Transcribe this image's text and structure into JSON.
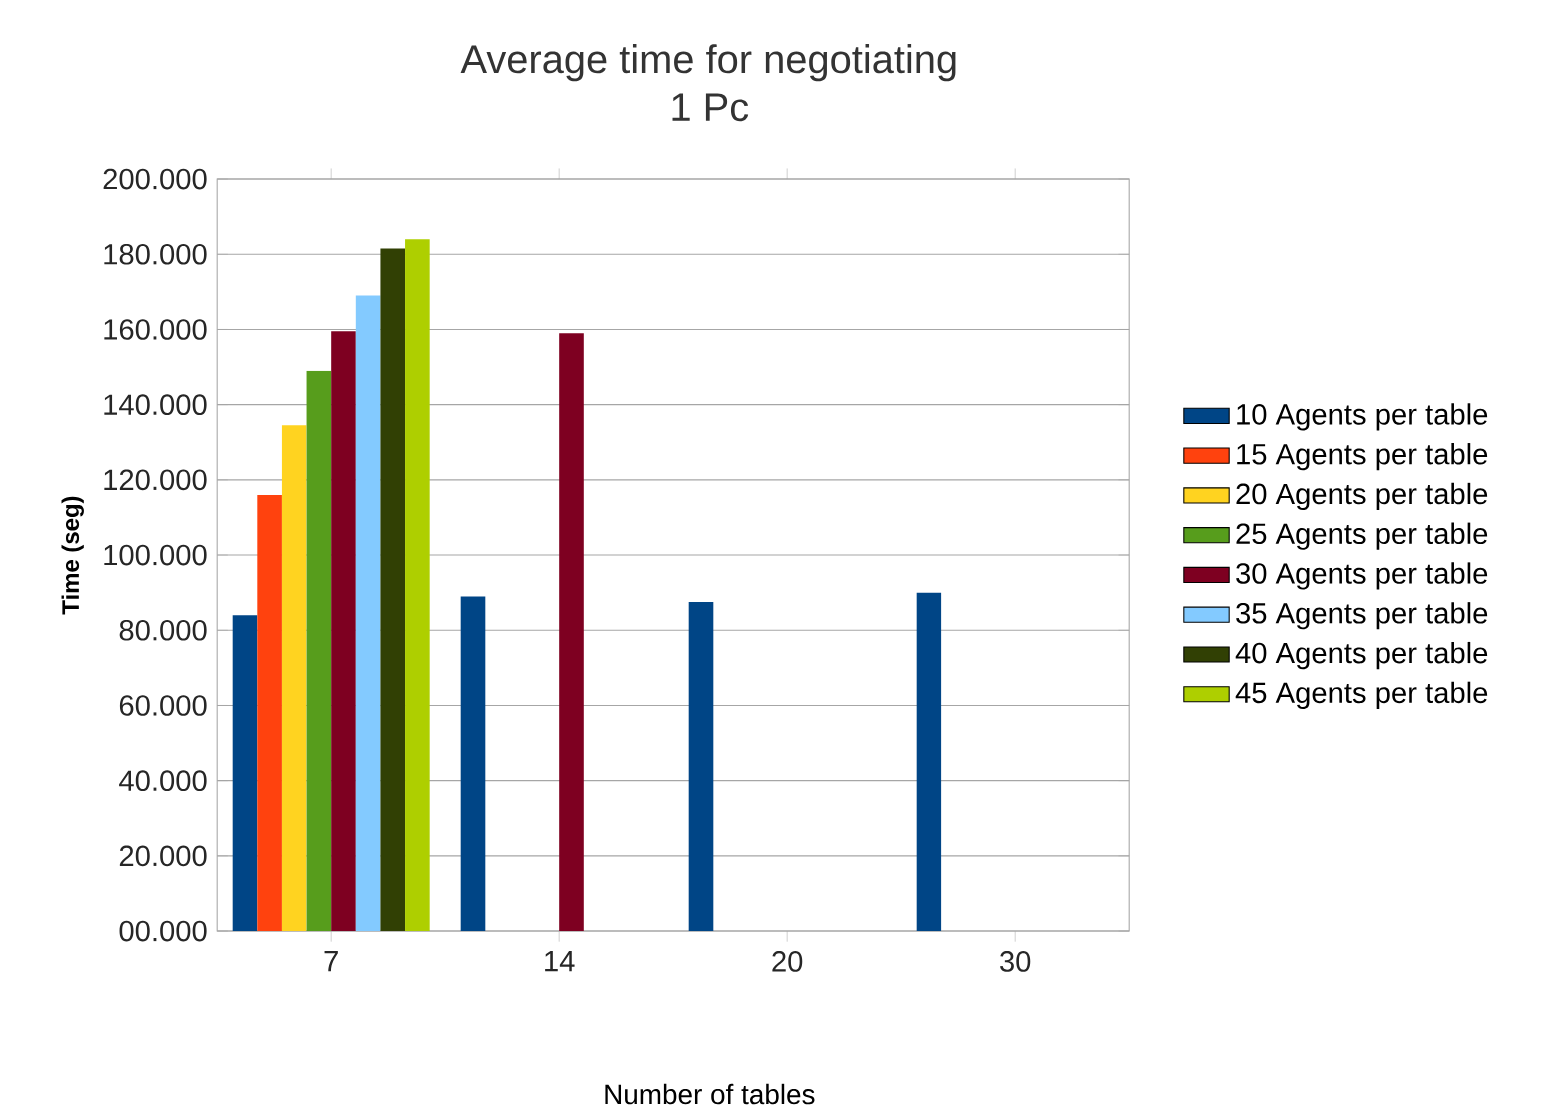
{
  "chart_data": {
    "type": "bar",
    "title": "Average time for negotiating",
    "subtitle": "1 Pc",
    "xlabel": "Number of tables",
    "ylabel": "Time (seg)",
    "categories": [
      "7",
      "14",
      "20",
      "30"
    ],
    "series": [
      {
        "name": "10 Agents per table",
        "color": "#004586",
        "values": [
          84,
          89,
          87.5,
          90
        ]
      },
      {
        "name": "15 Agents per table",
        "color": "#ff420e",
        "values": [
          116,
          null,
          null,
          null
        ]
      },
      {
        "name": "20 Agents per table",
        "color": "#ffd320",
        "values": [
          134.5,
          null,
          null,
          null
        ]
      },
      {
        "name": "25 Agents per table",
        "color": "#579d1c",
        "values": [
          149,
          null,
          null,
          null
        ]
      },
      {
        "name": "30 Agents per table",
        "color": "#7e0021",
        "values": [
          159.5,
          159,
          null,
          null
        ]
      },
      {
        "name": "35 Agents per table",
        "color": "#83caff",
        "values": [
          169,
          null,
          null,
          null
        ]
      },
      {
        "name": "40 Agents per table",
        "color": "#314004",
        "values": [
          181.5,
          null,
          null,
          null
        ]
      },
      {
        "name": "45 Agents per table",
        "color": "#aecf00",
        "values": [
          184,
          null,
          null,
          null
        ]
      }
    ],
    "ylim": [
      0,
      200
    ],
    "yticks": [
      {
        "value": 0,
        "label": "00.000"
      },
      {
        "value": 20,
        "label": "20.000"
      },
      {
        "value": 40,
        "label": "40.000"
      },
      {
        "value": 60,
        "label": "60.000"
      },
      {
        "value": 80,
        "label": "80.000"
      },
      {
        "value": 100,
        "label": "100.000"
      },
      {
        "value": 120,
        "label": "120.000"
      },
      {
        "value": 140,
        "label": "140.000"
      },
      {
        "value": 160,
        "label": "160.000"
      },
      {
        "value": 180,
        "label": "180.000"
      },
      {
        "value": 200,
        "label": "200.000"
      }
    ],
    "grid": "y",
    "legend": "right"
  }
}
